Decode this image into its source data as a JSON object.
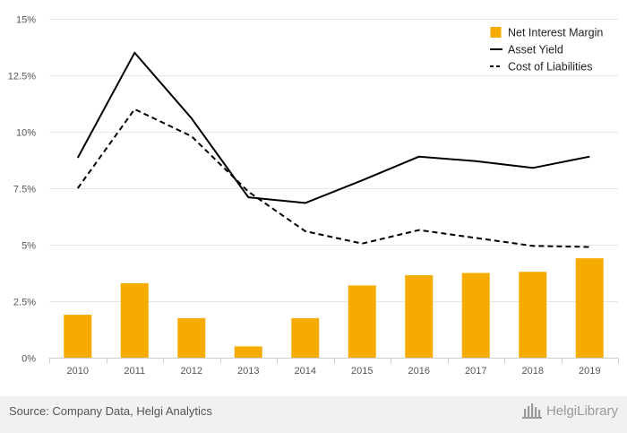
{
  "chart_data": {
    "type": "bar",
    "title": "",
    "xlabel": "",
    "ylabel": "",
    "categories": [
      "2010",
      "2011",
      "2012",
      "2013",
      "2014",
      "2015",
      "2016",
      "2017",
      "2018",
      "2019"
    ],
    "ylim": [
      0,
      15
    ],
    "yticks": [
      0,
      2.5,
      5,
      7.5,
      10,
      12.5,
      15
    ],
    "ytick_labels": [
      "0%",
      "2.5%",
      "5%",
      "7.5%",
      "10%",
      "12.5%",
      "15%"
    ],
    "grid": "horizontal",
    "legend_position": "top-right",
    "series": [
      {
        "name": "Net Interest Margin",
        "kind": "bar",
        "style": "solid",
        "color": "#f6ab00",
        "values": [
          1.9,
          3.3,
          1.75,
          0.5,
          1.75,
          3.2,
          3.65,
          3.75,
          3.8,
          4.4
        ]
      },
      {
        "name": "Asset Yield",
        "kind": "line",
        "style": "solid",
        "color": "#000000",
        "values": [
          8.85,
          13.5,
          10.6,
          7.1,
          6.85,
          7.85,
          8.9,
          8.7,
          8.4,
          8.9
        ]
      },
      {
        "name": "Cost of Liabilities",
        "kind": "line",
        "style": "dashed",
        "color": "#000000",
        "values": [
          7.5,
          11.0,
          9.8,
          7.35,
          5.6,
          5.05,
          5.65,
          5.3,
          4.95,
          4.9
        ]
      }
    ]
  },
  "footer": {
    "source": "Source: Company Data, Helgi Analytics",
    "brand": "HelgiLibrary",
    "brand_icon": "library-building-icon"
  }
}
